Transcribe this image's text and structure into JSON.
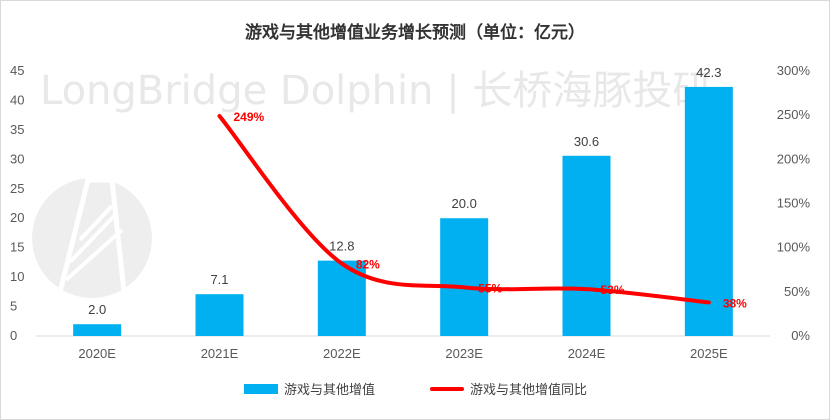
{
  "chart_data": {
    "type": "bar",
    "title": "游戏与其他增值业务增长预测（单位：亿元）",
    "categories": [
      "2020E",
      "2021E",
      "2022E",
      "2023E",
      "2024E",
      "2025E"
    ],
    "series": [
      {
        "name": "游戏与其他增值",
        "type": "bar",
        "axis": "left",
        "values": [
          2.0,
          7.1,
          12.8,
          20.0,
          30.6,
          42.3
        ],
        "labels": [
          "2.0",
          "7.1",
          "12.8",
          "20.0",
          "30.6",
          "42.3"
        ]
      },
      {
        "name": "游戏与其他增值同比",
        "type": "line",
        "axis": "right",
        "values": [
          null,
          249,
          82,
          55,
          53,
          38
        ],
        "labels": [
          "",
          "249%",
          "82%",
          "55%",
          "53%",
          "38%"
        ]
      }
    ],
    "y_left": {
      "min": 0,
      "max": 45,
      "step": 5,
      "ticks": [
        "0",
        "5",
        "10",
        "15",
        "20",
        "25",
        "30",
        "35",
        "40",
        "45"
      ]
    },
    "y_right": {
      "min": 0,
      "max": 300,
      "step": 50,
      "ticks": [
        "0%",
        "50%",
        "100%",
        "150%",
        "200%",
        "250%",
        "300%"
      ]
    },
    "legend": "bottom",
    "colors": {
      "bar": "#00b0f0",
      "line": "#ff0000",
      "line_label": "#ff0000"
    }
  },
  "watermark": "LongBridge Dolphin | 长桥海豚投研"
}
